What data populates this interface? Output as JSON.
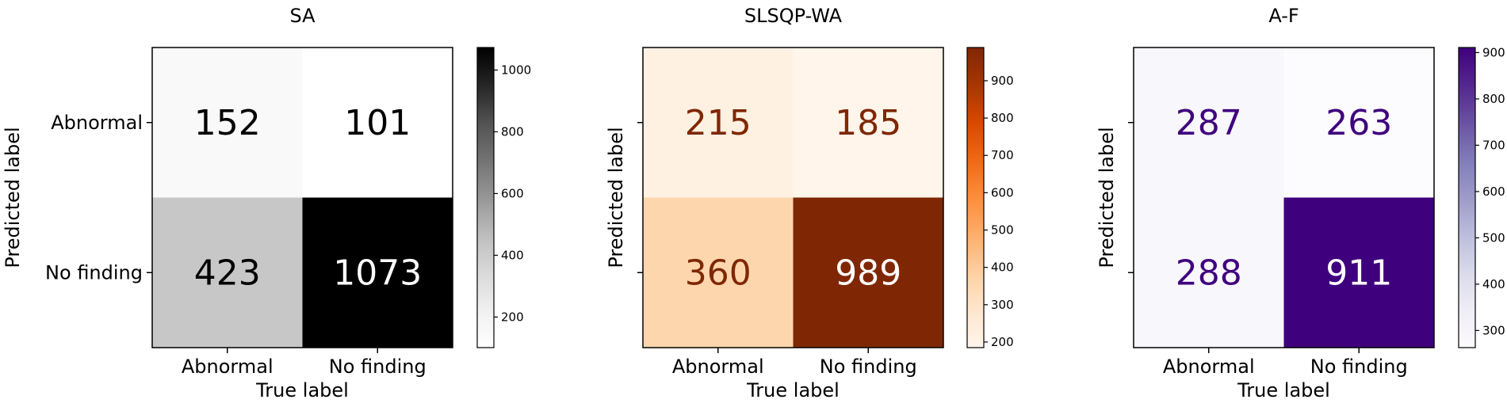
{
  "chart_data": [
    {
      "type": "heatmap",
      "title": "SA",
      "xlabel": "True label",
      "ylabel": "Predicted label",
      "x_categories": [
        "Abnormal",
        "No finding"
      ],
      "y_categories": [
        "Abnormal",
        "No finding"
      ],
      "values": [
        [
          152,
          101
        ],
        [
          423,
          1073
        ]
      ],
      "colorbar": {
        "colormap": "Greys",
        "range": [
          101,
          1073
        ],
        "ticks": [
          200,
          400,
          600,
          800,
          1000
        ],
        "tick_labels": [
          "200",
          "400",
          "600",
          "800",
          "1000"
        ],
        "color_low": "#ffffff",
        "color_high": "#000000"
      },
      "show_y_tick_labels": true
    },
    {
      "type": "heatmap",
      "title": "SLSQP-WA",
      "xlabel": "True label",
      "ylabel": "Predicted label",
      "x_categories": [
        "Abnormal",
        "No finding"
      ],
      "y_categories": [
        "Abnormal",
        "No finding"
      ],
      "values": [
        [
          215,
          185
        ],
        [
          360,
          989
        ]
      ],
      "colorbar": {
        "colormap": "Oranges",
        "range": [
          185,
          989
        ],
        "ticks": [
          200,
          300,
          400,
          500,
          600,
          700,
          800,
          900
        ],
        "tick_labels": [
          "200",
          "300",
          "400",
          "500",
          "600",
          "700",
          "800",
          "900"
        ],
        "color_low": "#fff5eb",
        "color_high": "#7f2704"
      },
      "show_y_tick_labels": false
    },
    {
      "type": "heatmap",
      "title": "A-F",
      "xlabel": "True label",
      "ylabel": "Predicted label",
      "x_categories": [
        "Abnormal",
        "No finding"
      ],
      "y_categories": [
        "Abnormal",
        "No finding"
      ],
      "values": [
        [
          287,
          263
        ],
        [
          288,
          911
        ]
      ],
      "colorbar": {
        "colormap": "Purples",
        "range": [
          263,
          911
        ],
        "ticks": [
          300,
          400,
          500,
          600,
          700,
          800,
          900
        ],
        "tick_labels": [
          "300",
          "400",
          "500",
          "600",
          "700",
          "800",
          "900"
        ],
        "color_low": "#fcfbfd",
        "color_high": "#3f007d"
      },
      "show_y_tick_labels": false
    }
  ]
}
